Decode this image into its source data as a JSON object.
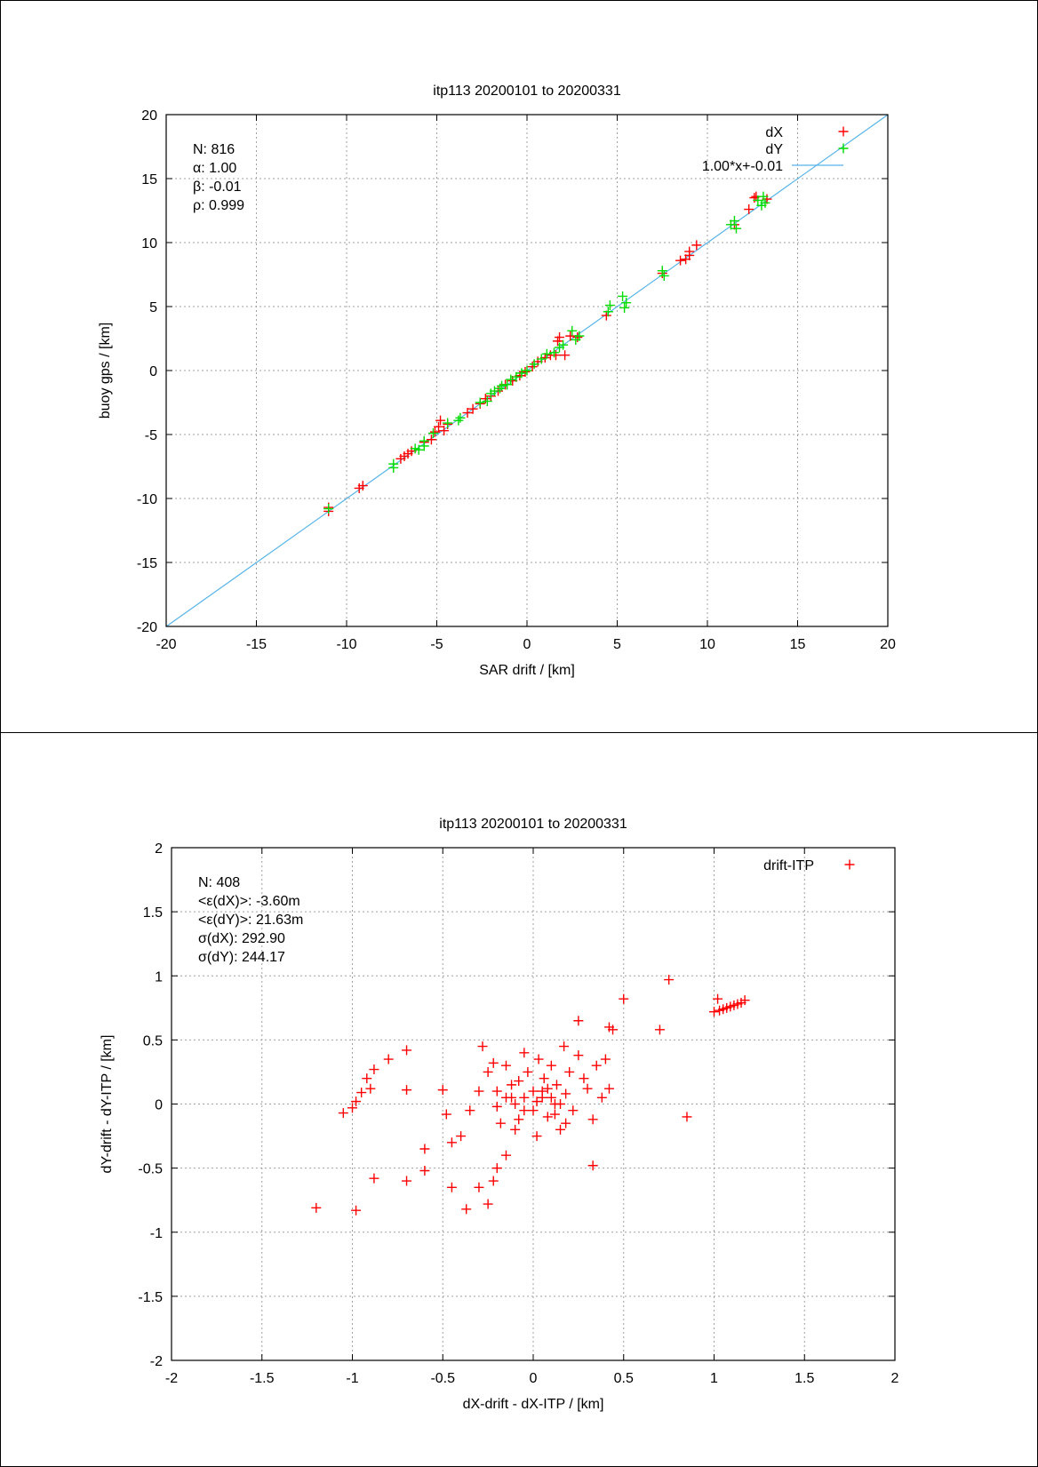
{
  "chart_data": [
    {
      "type": "scatter",
      "title": "itp113 20200101 to 20200331",
      "xlabel": "SAR drift / [km]",
      "ylabel": "buoy gps / [km]",
      "xlim": [
        -20,
        20
      ],
      "ylim": [
        -20,
        20
      ],
      "xticks": [
        "-20",
        "-15",
        "-10",
        "-5",
        "0",
        "5",
        "10",
        "15",
        "20"
      ],
      "yticks": [
        "-20",
        "-15",
        "-10",
        "-5",
        "0",
        "5",
        "10",
        "15",
        "20"
      ],
      "grid": true,
      "legend_position": "top-right",
      "stats": [
        "N: 816",
        "α: 1.00",
        "β: -0.01",
        "ρ: 0.999"
      ],
      "series": [
        {
          "name": "dX",
          "color": "#ff0000",
          "marker": "plus",
          "points": [
            [
              -11,
              -11
            ],
            [
              -11,
              -10.7
            ],
            [
              -9.3,
              -9.2
            ],
            [
              -9.1,
              -9
            ],
            [
              -7,
              -6.9
            ],
            [
              -6.8,
              -6.7
            ],
            [
              -6.6,
              -6.5
            ],
            [
              -6.4,
              -6.3
            ],
            [
              -5.7,
              -5.6
            ],
            [
              -5.3,
              -5.4
            ],
            [
              -5.1,
              -4.8
            ],
            [
              -4.9,
              -4.4
            ],
            [
              -4.8,
              -3.9
            ],
            [
              -4.6,
              -4.7
            ],
            [
              -4.4,
              -4.2
            ],
            [
              -3.3,
              -3.3
            ],
            [
              -3,
              -3
            ],
            [
              -2.6,
              -2.6
            ],
            [
              -2.3,
              -2.2
            ],
            [
              -2,
              -2
            ],
            [
              -1.6,
              -1.6
            ],
            [
              -1.2,
              -1.1
            ],
            [
              -0.8,
              -0.8
            ],
            [
              -0.4,
              -0.4
            ],
            [
              -0.1,
              -0.1
            ],
            [
              0.3,
              0.3
            ],
            [
              0.6,
              0.7
            ],
            [
              1,
              1
            ],
            [
              1.3,
              1.2
            ],
            [
              1.6,
              1.2
            ],
            [
              1.7,
              2.3
            ],
            [
              1.8,
              2.6
            ],
            [
              2.1,
              1.2
            ],
            [
              2.4,
              2.7
            ],
            [
              2.8,
              2.6
            ],
            [
              4.4,
              4.3
            ],
            [
              7.5,
              7.6
            ],
            [
              8.5,
              8.6
            ],
            [
              8.8,
              8.7
            ],
            [
              9,
              9
            ],
            [
              9,
              9.3
            ],
            [
              9.4,
              9.8
            ],
            [
              11.5,
              11.4
            ],
            [
              12.3,
              12.6
            ],
            [
              12.6,
              13.5
            ],
            [
              12.7,
              13.6
            ],
            [
              13.3,
              13.4
            ]
          ]
        },
        {
          "name": "dY",
          "color": "#00dd00",
          "marker": "plus",
          "points": [
            [
              -11,
              -10.8
            ],
            [
              -7.4,
              -7.6
            ],
            [
              -7.4,
              -7.3
            ],
            [
              -6.2,
              -6.1
            ],
            [
              -6.0,
              -6.2
            ],
            [
              -5.7,
              -5.9
            ],
            [
              -5.7,
              -5.5
            ],
            [
              -5.2,
              -4.9
            ],
            [
              -4.4,
              -4.1
            ],
            [
              -3.8,
              -3.9
            ],
            [
              -3.7,
              -3.7
            ],
            [
              -2.6,
              -2.5
            ],
            [
              -2.2,
              -2.4
            ],
            [
              -2,
              -1.8
            ],
            [
              -1.8,
              -1.6
            ],
            [
              -1.5,
              -1.4
            ],
            [
              -1.4,
              -1.2
            ],
            [
              -1.1,
              -1.1
            ],
            [
              -0.9,
              -0.7
            ],
            [
              -0.6,
              -0.5
            ],
            [
              -0.3,
              -0.2
            ],
            [
              0,
              0
            ],
            [
              0.4,
              0.5
            ],
            [
              0.8,
              0.9
            ],
            [
              1.1,
              1.3
            ],
            [
              1.5,
              1.4
            ],
            [
              1.8,
              1.8
            ],
            [
              2,
              2
            ],
            [
              2.5,
              3.1
            ],
            [
              2.7,
              2.4
            ],
            [
              2.9,
              2.7
            ],
            [
              4.5,
              4.6
            ],
            [
              4.6,
              5.1
            ],
            [
              5.3,
              5.8
            ],
            [
              5.4,
              4.9
            ],
            [
              5.5,
              5.3
            ],
            [
              7.5,
              7.8
            ],
            [
              7.6,
              7.4
            ],
            [
              11.3,
              11.4
            ],
            [
              11.5,
              11.7
            ],
            [
              11.6,
              11.1
            ],
            [
              12.8,
              13.3
            ],
            [
              13,
              12.9
            ],
            [
              13.1,
              13.6
            ],
            [
              13.2,
              13.1
            ]
          ]
        }
      ],
      "fit_line": {
        "label": "1.00*x+-0.01",
        "slope": 1.0,
        "intercept": -0.01,
        "color": "#56b4e9"
      }
    },
    {
      "type": "scatter",
      "title": "itp113 20200101 to 20200331",
      "xlabel": "dX-drift - dX-ITP / [km]",
      "ylabel": "dY-drift - dY-ITP / [km]",
      "xlim": [
        -2,
        2
      ],
      "ylim": [
        -2,
        2
      ],
      "xticks": [
        "-2",
        "-1.5",
        "-1",
        "-0.5",
        "0",
        "0.5",
        "1",
        "1.5",
        "2"
      ],
      "yticks": [
        "-2",
        "-1.5",
        "-1",
        "-0.5",
        "0",
        "0.5",
        "1",
        "1.5",
        "2"
      ],
      "grid": true,
      "legend_position": "top-right",
      "stats": [
        "N: 408",
        "<ε(dX)>:  -3.60m",
        "<ε(dY)>: 21.63m",
        "σ(dX):  292.90",
        "σ(dY):  244.17"
      ],
      "series": [
        {
          "name": "drift-ITP",
          "color": "#ff0000",
          "marker": "plus",
          "points": [
            [
              -1.2,
              -0.81
            ],
            [
              -0.98,
              -0.83
            ],
            [
              -0.88,
              -0.58
            ],
            [
              -0.7,
              -0.6
            ],
            [
              -0.6,
              -0.52
            ],
            [
              -0.6,
              -0.35
            ],
            [
              -0.45,
              -0.65
            ],
            [
              -0.37,
              -0.82
            ],
            [
              -0.3,
              -0.65
            ],
            [
              -0.25,
              -0.78
            ],
            [
              -0.22,
              -0.6
            ],
            [
              -0.2,
              -0.5
            ],
            [
              -0.15,
              -0.4
            ],
            [
              -1.05,
              -0.07
            ],
            [
              -1.0,
              -0.03
            ],
            [
              -0.98,
              0.02
            ],
            [
              -0.95,
              0.09
            ],
            [
              -0.9,
              0.12
            ],
            [
              -0.92,
              0.2
            ],
            [
              -0.88,
              0.27
            ],
            [
              -0.8,
              0.35
            ],
            [
              -0.7,
              0.42
            ],
            [
              -0.7,
              0.11
            ],
            [
              -0.5,
              0.11
            ],
            [
              -0.48,
              -0.08
            ],
            [
              -0.45,
              -0.3
            ],
            [
              -0.4,
              -0.25
            ],
            [
              -0.35,
              -0.05
            ],
            [
              -0.3,
              0.1
            ],
            [
              -0.25,
              0.25
            ],
            [
              -0.28,
              0.45
            ],
            [
              -0.22,
              0.32
            ],
            [
              -0.2,
              0.1
            ],
            [
              -0.18,
              -0.15
            ],
            [
              -0.15,
              0.3
            ],
            [
              -0.12,
              0.05
            ],
            [
              -0.1,
              -0.2
            ],
            [
              -0.08,
              0.18
            ],
            [
              -0.05,
              0.4
            ],
            [
              -0.05,
              -0.05
            ],
            [
              -0.03,
              0.25
            ],
            [
              0,
              0.1
            ],
            [
              0.02,
              -0.25
            ],
            [
              0.03,
              0.35
            ],
            [
              0.05,
              0.05
            ],
            [
              0.06,
              0.2
            ],
            [
              0.08,
              -0.1
            ],
            [
              0.1,
              0.3
            ],
            [
              0.12,
              0.0
            ],
            [
              0.13,
              0.15
            ],
            [
              0.15,
              -0.2
            ],
            [
              0.17,
              0.45
            ],
            [
              0.18,
              0.08
            ],
            [
              0.2,
              0.25
            ],
            [
              0.22,
              -0.05
            ],
            [
              0.25,
              0.38
            ],
            [
              0.28,
              0.2
            ],
            [
              0.3,
              0.12
            ],
            [
              0.33,
              -0.12
            ],
            [
              0.35,
              0.3
            ],
            [
              0.38,
              0.05
            ],
            [
              0.4,
              0.35
            ],
            [
              0.42,
              0.12
            ],
            [
              0.33,
              -0.48
            ],
            [
              0.25,
              0.65
            ],
            [
              0.42,
              0.6
            ],
            [
              0.44,
              0.58
            ],
            [
              0.5,
              0.82
            ],
            [
              0.7,
              0.58
            ],
            [
              0.75,
              0.97
            ],
            [
              0.85,
              -0.1
            ],
            [
              1.0,
              0.72
            ],
            [
              1.02,
              0.82
            ],
            [
              1.03,
              0.73
            ],
            [
              1.05,
              0.74
            ],
            [
              1.07,
              0.75
            ],
            [
              1.09,
              0.76
            ],
            [
              1.11,
              0.77
            ],
            [
              1.13,
              0.78
            ],
            [
              1.15,
              0.79
            ],
            [
              1.17,
              0.81
            ],
            [
              -0.1,
              0.0
            ],
            [
              -0.05,
              0.05
            ],
            [
              0.0,
              -0.05
            ],
            [
              0.05,
              0.1
            ],
            [
              0.1,
              0.05
            ],
            [
              0.15,
              0.0
            ],
            [
              -0.15,
              0.05
            ],
            [
              -0.2,
              -0.02
            ],
            [
              0.08,
              0.12
            ],
            [
              0.12,
              -0.08
            ],
            [
              -0.08,
              -0.12
            ],
            [
              0.02,
              0.02
            ],
            [
              -0.12,
              0.15
            ],
            [
              0.18,
              -0.15
            ]
          ]
        }
      ]
    }
  ]
}
